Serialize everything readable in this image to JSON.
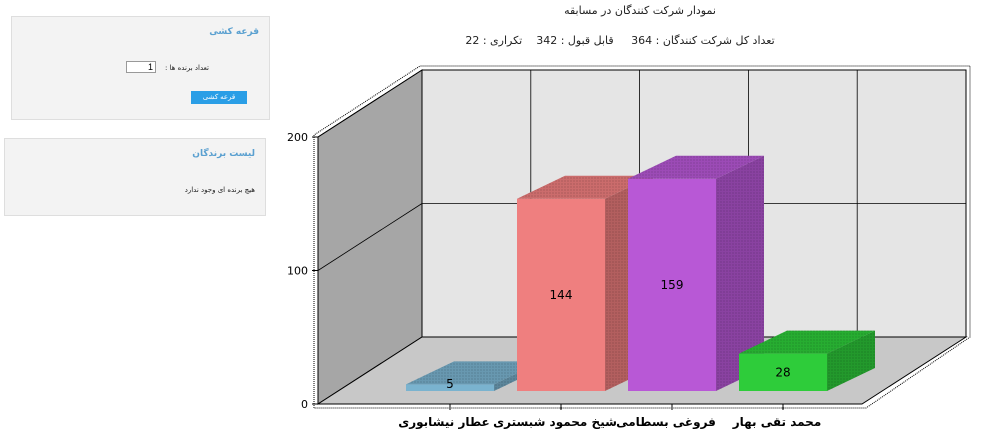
{
  "draw_panel": {
    "title": "قرعه کشی",
    "count_label": "تعداد برنده ها :",
    "count_value": "1",
    "button_label": "قرعه کشی"
  },
  "winners_panel": {
    "title": "لیست برندگان",
    "empty_text": "هیچ برنده ای وجود ندارد"
  },
  "stats": {
    "title": "نمودار شرکت کنندگان در مسابقه",
    "line": "تعداد کل شرکت کنندگان : 364     قابل قبول : 342    تکراری : 22"
  },
  "colors": {
    "link": "#5aa0d0",
    "button": "#2a9ee6"
  },
  "chart_data": {
    "type": "bar",
    "categories": [
      "عطار نیشابوری",
      "شیخ محمود شبستری",
      "فروغی بسطامی",
      "محمد تقی بهار"
    ],
    "values": [
      5,
      144,
      159,
      28
    ],
    "value_labels": [
      "5",
      "144",
      "159",
      "28"
    ],
    "ytick_labels": [
      "0",
      "100",
      "200"
    ],
    "yticks": [
      0,
      100,
      200
    ],
    "ylim": [
      0,
      200
    ],
    "grid": true,
    "colors": [
      "#7ab3cf",
      "#ef7f7f",
      "#b858d6",
      "#2ecc3a"
    ]
  }
}
